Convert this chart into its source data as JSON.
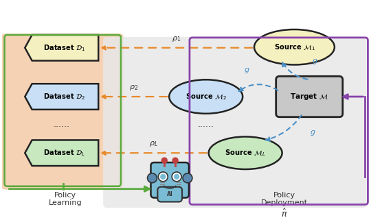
{
  "bg_color": "#ffffff",
  "left_panel_color": "#f5cba7",
  "right_panel_color": "#e8e8e8",
  "dataset_colors": [
    "#f5f0c0",
    "#c8dff5",
    "#c8e8c0"
  ],
  "source_colors": [
    "#f5f0c0",
    "#c8dff5",
    "#c8e8c0"
  ],
  "target_color": "#c8c8c8",
  "dataset_labels": [
    "Dataset $\\mathcal{D}_1$",
    "Dataset $\\mathcal{D}_2$",
    "Dataset $\\mathcal{D}_L$"
  ],
  "source_labels": [
    "Source $\\mathcal{M}_1$",
    "Source $\\mathcal{M}_2$",
    "Source $\\mathcal{M}_L$"
  ],
  "target_label": "Target $\\mathcal{M}$",
  "rho_labels": [
    "$\\rho_1$",
    "$\\rho_2$",
    "$\\rho_L$"
  ],
  "g_label": "$g$",
  "policy_learning": "Policy\nLearning",
  "policy_deployment": "Policy\nDeployment",
  "pi_hat": "$\\hat{\\pi}$",
  "orange_color": "#e8892a",
  "blue_color": "#4a90c8",
  "green_color": "#5aaa3c",
  "purple_color": "#8844aa",
  "robot_body_color": "#7bbcd5",
  "robot_ear_color": "#5a8ab0",
  "robot_antenna_color": "#c04040"
}
